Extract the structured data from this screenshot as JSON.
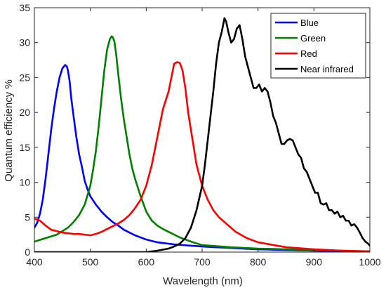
{
  "chart_data": {
    "type": "line",
    "xlabel": "Wavelength (nm)",
    "ylabel": "Quantum efficiency %",
    "xlim": [
      400,
      1000
    ],
    "ylim": [
      0,
      35
    ],
    "xticks": [
      400,
      500,
      600,
      700,
      800,
      900,
      1000
    ],
    "yticks": [
      0,
      5,
      10,
      15,
      20,
      25,
      30,
      35
    ],
    "grid": false,
    "legend_position": "top-right",
    "series": [
      {
        "name": "Blue",
        "color": "#0000ff",
        "x": [
          400,
          405,
          410,
          415,
          420,
          425,
          430,
          435,
          440,
          445,
          450,
          455,
          458,
          460,
          463,
          466,
          470,
          475,
          480,
          485,
          490,
          495,
          500,
          510,
          520,
          530,
          540,
          550,
          560,
          570,
          580,
          600,
          620,
          650,
          700,
          750,
          800,
          850,
          900,
          950,
          1000
        ],
        "y": [
          3.5,
          4.2,
          5.5,
          7.5,
          10.5,
          14.0,
          17.5,
          20.5,
          23.0,
          25.0,
          26.3,
          26.8,
          26.6,
          26.0,
          24.5,
          22.0,
          19.5,
          16.5,
          14.0,
          12.2,
          10.2,
          9.0,
          8.0,
          6.8,
          5.8,
          5.0,
          4.3,
          3.8,
          3.2,
          2.8,
          2.4,
          1.8,
          1.4,
          1.1,
          0.8,
          0.6,
          0.4,
          0.3,
          0.2,
          0.1,
          0.1
        ]
      },
      {
        "name": "Green",
        "color": "#008000",
        "x": [
          400,
          420,
          440,
          460,
          470,
          480,
          490,
          500,
          505,
          510,
          515,
          520,
          525,
          530,
          535,
          538,
          540,
          543,
          546,
          550,
          555,
          560,
          565,
          570,
          575,
          580,
          590,
          600,
          610,
          620,
          630,
          640,
          650,
          660,
          680,
          700,
          750,
          800,
          850,
          900,
          950,
          1000
        ],
        "y": [
          1.5,
          2.0,
          2.5,
          3.5,
          4.3,
          5.3,
          6.8,
          9.5,
          11.8,
          14.5,
          18.0,
          22.0,
          26.0,
          29.0,
          30.5,
          30.9,
          30.8,
          30.2,
          28.5,
          25.5,
          22.0,
          19.0,
          16.5,
          14.0,
          12.0,
          10.5,
          8.0,
          5.8,
          4.5,
          3.8,
          3.3,
          2.9,
          2.5,
          2.1,
          1.5,
          1.0,
          0.7,
          0.5,
          0.4,
          0.3,
          0.2,
          0.1
        ]
      },
      {
        "name": "Red",
        "color": "#ff0000",
        "x": [
          400,
          410,
          420,
          430,
          440,
          450,
          460,
          470,
          480,
          490,
          500,
          510,
          520,
          530,
          540,
          550,
          560,
          570,
          580,
          590,
          600,
          610,
          620,
          630,
          640,
          645,
          650,
          655,
          660,
          665,
          670,
          675,
          680,
          690,
          700,
          710,
          720,
          730,
          740,
          750,
          760,
          780,
          800,
          850,
          900,
          950,
          1000
        ],
        "y": [
          4.8,
          4.5,
          3.8,
          3.2,
          3.0,
          2.8,
          2.7,
          2.6,
          2.6,
          2.5,
          2.4,
          2.6,
          2.9,
          3.3,
          3.7,
          4.1,
          4.6,
          5.3,
          6.3,
          7.5,
          9.5,
          12.5,
          16.5,
          20.5,
          23.0,
          25.0,
          27.0,
          27.2,
          27.1,
          26.0,
          23.5,
          20.0,
          17.5,
          12.5,
          9.5,
          7.5,
          6.0,
          5.0,
          4.3,
          3.6,
          2.9,
          2.0,
          1.4,
          0.7,
          0.4,
          0.2,
          0.1
        ]
      },
      {
        "name": "Near infrared",
        "color": "#000000",
        "x": [
          400,
          600,
          620,
          640,
          650,
          660,
          670,
          680,
          690,
          700,
          705,
          710,
          715,
          720,
          725,
          730,
          735,
          740,
          743,
          747,
          752,
          757,
          762,
          767,
          772,
          777,
          782,
          787,
          792,
          797,
          802,
          807,
          812,
          817,
          822,
          827,
          832,
          837,
          842,
          847,
          852,
          857,
          862,
          867,
          872,
          877,
          882,
          887,
          892,
          897,
          902,
          907,
          912,
          917,
          922,
          927,
          932,
          937,
          942,
          947,
          952,
          957,
          962,
          967,
          972,
          977,
          982,
          987,
          992,
          997,
          1000
        ],
        "y": [
          0,
          0,
          0.2,
          0.5,
          0.8,
          1.2,
          2.0,
          3.5,
          6.0,
          9.5,
          12.5,
          16.0,
          19.5,
          23.0,
          27.0,
          30.0,
          31.5,
          33.5,
          33.0,
          31.5,
          30.0,
          30.5,
          32.0,
          32.5,
          30.5,
          28.0,
          26.5,
          25.0,
          23.5,
          23.5,
          24.0,
          23.0,
          23.5,
          23.0,
          21.5,
          19.5,
          18.5,
          17.0,
          15.5,
          15.5,
          16.0,
          16.2,
          16.0,
          15.0,
          14.0,
          13.5,
          12.0,
          11.5,
          10.5,
          9.5,
          8.5,
          8.5,
          7.0,
          6.8,
          7.0,
          6.0,
          6.0,
          5.5,
          5.8,
          5.0,
          5.2,
          4.5,
          4.5,
          3.8,
          4.0,
          3.5,
          2.8,
          2.0,
          1.5,
          1.2,
          0.9
        ]
      }
    ]
  }
}
